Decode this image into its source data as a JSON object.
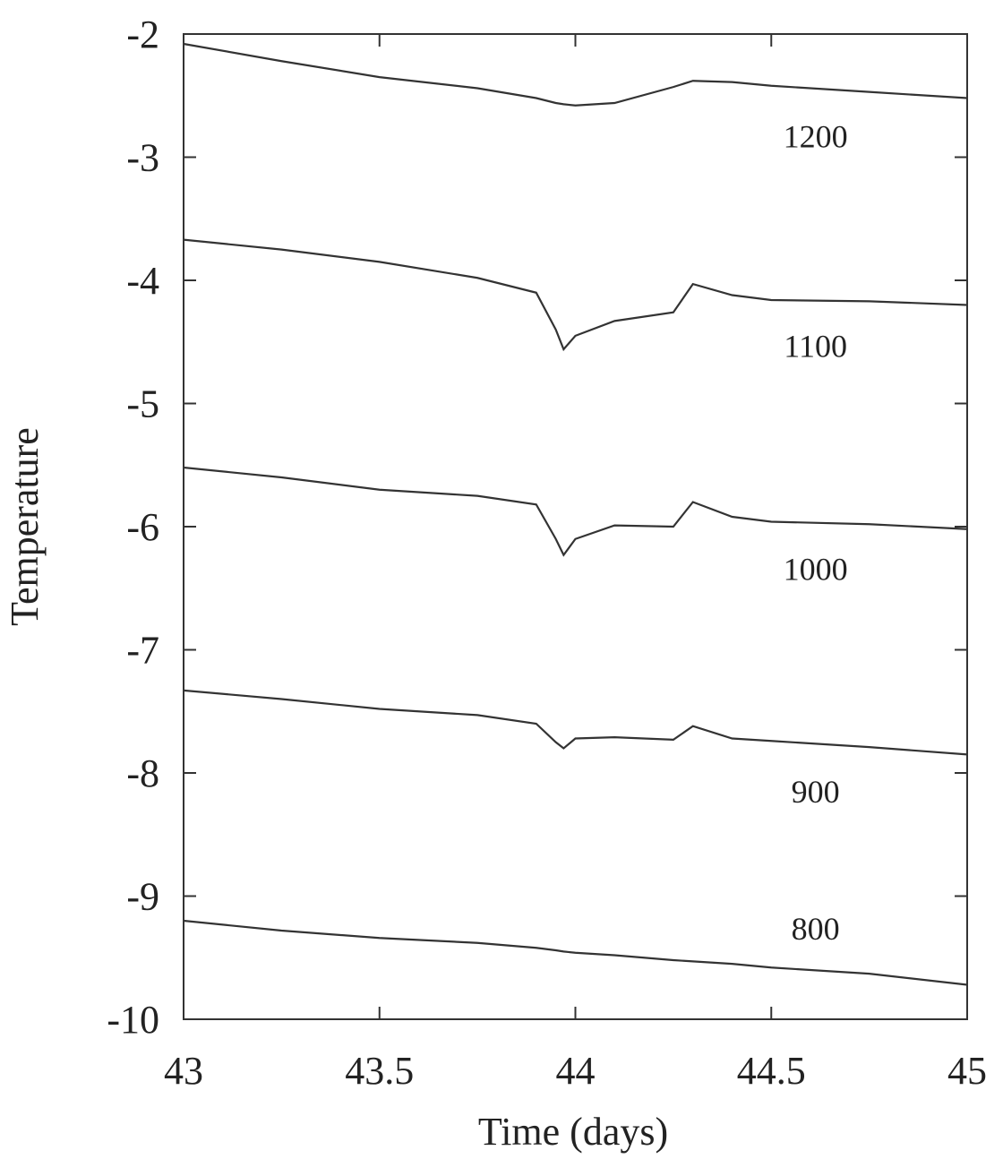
{
  "chart_data": {
    "type": "line",
    "x_label": "Time (days)",
    "y_label": "Temperature",
    "x": [
      43,
      43.25,
      43.5,
      43.75,
      43.9,
      43.95,
      43.97,
      44,
      44.1,
      44.25,
      44.3,
      44.4,
      44.5,
      44.75,
      45
    ],
    "series": [
      {
        "name": "1200",
        "color": "#333333",
        "values": [
          -2.08,
          -2.22,
          -2.35,
          -2.44,
          -2.52,
          -2.56,
          -2.57,
          -2.58,
          -2.56,
          -2.43,
          -2.38,
          -2.39,
          -2.42,
          -2.47,
          -2.52
        ]
      },
      {
        "name": "1100",
        "color": "#333333",
        "values": [
          -3.67,
          -3.75,
          -3.85,
          -3.98,
          -4.1,
          -4.4,
          -4.56,
          -4.45,
          -4.33,
          -4.26,
          -4.03,
          -4.12,
          -4.16,
          -4.17,
          -4.2
        ]
      },
      {
        "name": "1000",
        "color": "#333333",
        "values": [
          -5.52,
          -5.6,
          -5.7,
          -5.75,
          -5.82,
          -6.1,
          -6.23,
          -6.1,
          -5.99,
          -6.0,
          -5.8,
          -5.92,
          -5.96,
          -5.98,
          -6.02
        ]
      },
      {
        "name": "900",
        "color": "#333333",
        "values": [
          -7.33,
          -7.4,
          -7.48,
          -7.53,
          -7.6,
          -7.75,
          -7.8,
          -7.72,
          -7.71,
          -7.73,
          -7.62,
          -7.72,
          -7.74,
          -7.79,
          -7.85
        ]
      },
      {
        "name": "800",
        "color": "#333333",
        "values": [
          -9.2,
          -9.28,
          -9.34,
          -9.38,
          -9.42,
          -9.44,
          -9.45,
          -9.46,
          -9.48,
          -9.52,
          -9.53,
          -9.55,
          -9.58,
          -9.63,
          -9.72
        ]
      }
    ],
    "xlim": [
      43,
      45
    ],
    "xticks": [
      43,
      43.5,
      44,
      44.5,
      45
    ],
    "ylim": [
      -10,
      -2
    ],
    "yticks": [
      -10,
      -9,
      -8,
      -7,
      -6,
      -5,
      -4,
      -3,
      -2
    ]
  }
}
